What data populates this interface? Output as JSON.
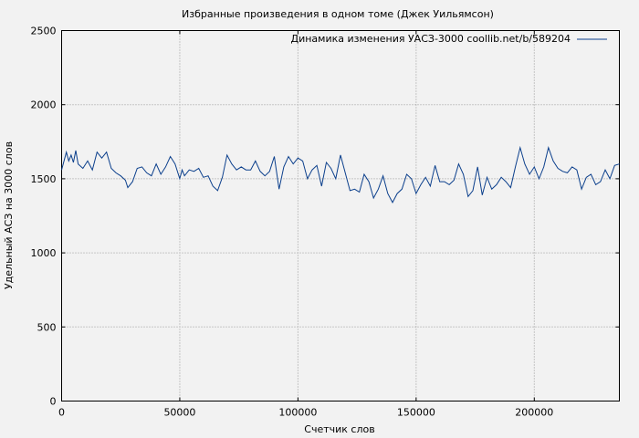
{
  "chart_data": {
    "type": "line",
    "title": "Избранные произведения в одном томе (Джек Уильямсон)",
    "xlabel": "Счетчик слов",
    "ylabel": "Удельный АСЗ на 3000 слов",
    "xlim": [
      0,
      236000
    ],
    "ylim": [
      0,
      2500
    ],
    "xticks": [
      0,
      50000,
      100000,
      150000,
      200000
    ],
    "yticks": [
      0,
      500,
      1000,
      1500,
      2000,
      2500
    ],
    "grid": true,
    "legend_position": "top-right",
    "series": [
      {
        "name": "Динамика изменения УАСЗ-3000 coollib.net/b/589204",
        "color": "#0b3f8c",
        "x": [
          0,
          2000,
          3000,
          4000,
          5000,
          6000,
          7000,
          9000,
          11000,
          13000,
          15000,
          17000,
          19000,
          21000,
          23000,
          25000,
          27000,
          28000,
          30000,
          32000,
          34000,
          36000,
          38000,
          40000,
          42000,
          44000,
          46000,
          48000,
          50000,
          51000,
          52000,
          54000,
          56000,
          58000,
          60000,
          62000,
          64000,
          66000,
          68000,
          70000,
          72000,
          74000,
          76000,
          78000,
          80000,
          82000,
          84000,
          86000,
          88000,
          90000,
          92000,
          94000,
          96000,
          98000,
          100000,
          102000,
          104000,
          106000,
          108000,
          110000,
          112000,
          114000,
          116000,
          118000,
          120000,
          122000,
          124000,
          126000,
          128000,
          130000,
          132000,
          134000,
          136000,
          138000,
          140000,
          142000,
          144000,
          146000,
          148000,
          150000,
          152000,
          154000,
          156000,
          158000,
          160000,
          162000,
          164000,
          166000,
          168000,
          170000,
          172000,
          174000,
          176000,
          178000,
          180000,
          182000,
          184000,
          186000,
          188000,
          190000,
          192000,
          194000,
          196000,
          198000,
          200000,
          202000,
          204000,
          206000,
          208000,
          210000,
          212000,
          214000,
          216000,
          218000,
          220000,
          222000,
          224000,
          226000,
          228000,
          230000,
          232000,
          234000,
          236000
        ],
        "values": [
          1560,
          1680,
          1620,
          1660,
          1610,
          1690,
          1600,
          1570,
          1620,
          1560,
          1680,
          1640,
          1680,
          1570,
          1540,
          1520,
          1490,
          1440,
          1480,
          1570,
          1580,
          1540,
          1520,
          1600,
          1530,
          1580,
          1650,
          1600,
          1500,
          1560,
          1520,
          1560,
          1550,
          1570,
          1510,
          1520,
          1450,
          1420,
          1510,
          1660,
          1600,
          1560,
          1580,
          1560,
          1560,
          1620,
          1550,
          1520,
          1550,
          1650,
          1430,
          1580,
          1650,
          1600,
          1640,
          1620,
          1500,
          1560,
          1590,
          1450,
          1610,
          1570,
          1500,
          1660,
          1540,
          1420,
          1430,
          1410,
          1530,
          1480,
          1370,
          1430,
          1520,
          1400,
          1340,
          1400,
          1430,
          1530,
          1500,
          1400,
          1460,
          1510,
          1450,
          1590,
          1480,
          1480,
          1460,
          1490,
          1600,
          1530,
          1380,
          1420,
          1580,
          1390,
          1510,
          1430,
          1460,
          1510,
          1480,
          1440,
          1580,
          1710,
          1600,
          1530,
          1580,
          1500,
          1580,
          1710,
          1620,
          1570,
          1550,
          1540,
          1580,
          1560,
          1430,
          1510,
          1530,
          1460,
          1480,
          1560,
          1500,
          1590,
          1600
        ]
      }
    ]
  }
}
